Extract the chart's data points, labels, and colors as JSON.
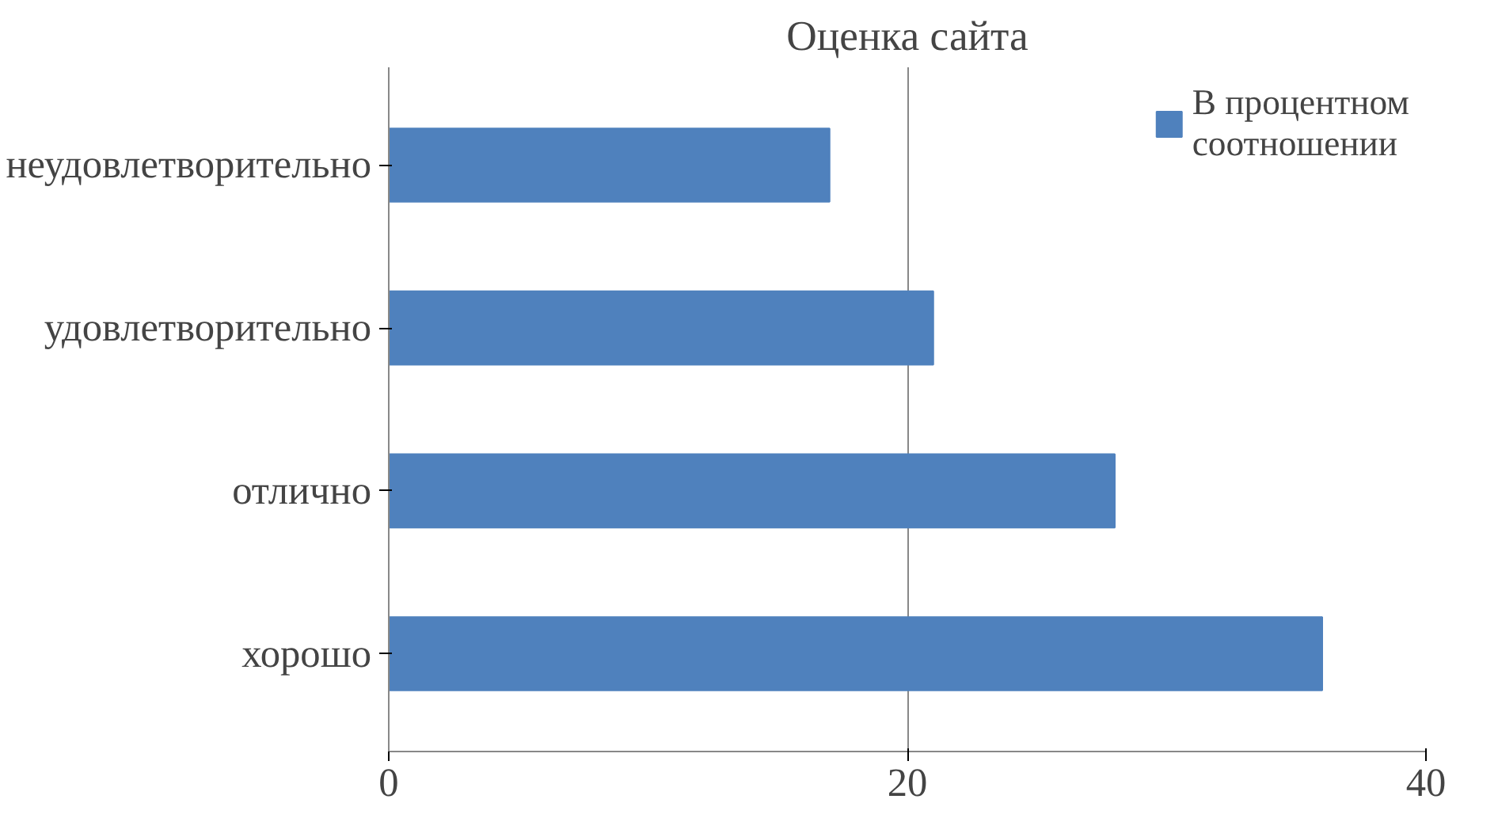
{
  "chart_data": {
    "type": "bar",
    "orientation": "horizontal",
    "title": "Оценка сайта",
    "categories": [
      "неудовлетворительно",
      "удовлетворительно",
      "отлично",
      "хорошо"
    ],
    "series": [
      {
        "name": "В процентном соотношении",
        "color": "#4f81bd",
        "values": [
          17,
          21,
          28,
          36
        ]
      }
    ],
    "xlim": [
      0,
      40
    ],
    "xticks": [
      0,
      20,
      40
    ],
    "grid": "x",
    "legend": "right"
  }
}
